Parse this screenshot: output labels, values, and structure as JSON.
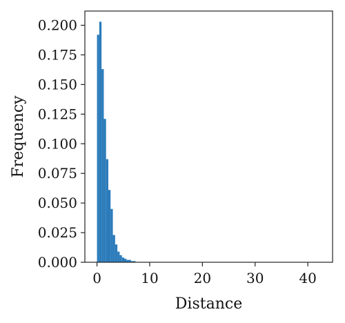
{
  "chart_data": {
    "type": "bar",
    "xlabel": "Distance",
    "ylabel": "Frequency",
    "xlim": [
      -2.3,
      44.7
    ],
    "ylim": [
      0,
      0.212
    ],
    "xticks": [
      0,
      10,
      20,
      30,
      40
    ],
    "xtick_labels": [
      "0",
      "10",
      "20",
      "30",
      "40"
    ],
    "yticks": [
      0,
      0.025,
      0.05,
      0.075,
      0.1,
      0.125,
      0.15,
      0.175,
      0.2
    ],
    "ytick_labels": [
      "0.000",
      "0.025",
      "0.050",
      "0.075",
      "0.100",
      "0.125",
      "0.150",
      "0.175",
      "0.200"
    ],
    "grid": false,
    "legend": "none",
    "bar_color": "#2b7bba",
    "bin_width": 0.43,
    "bins_start": [
      0,
      0.43,
      0.86,
      1.29,
      1.72,
      2.15,
      2.58,
      3.01,
      3.44,
      3.87,
      4.3,
      4.73,
      5.16,
      5.59,
      6.02,
      6.45,
      6.88
    ],
    "values": [
      0.192,
      0.203,
      0.163,
      0.121,
      0.087,
      0.061,
      0.045,
      0.023,
      0.015,
      0.009,
      0.006,
      0.004,
      0.003,
      0.002,
      0.002,
      0.001,
      0.001
    ]
  }
}
